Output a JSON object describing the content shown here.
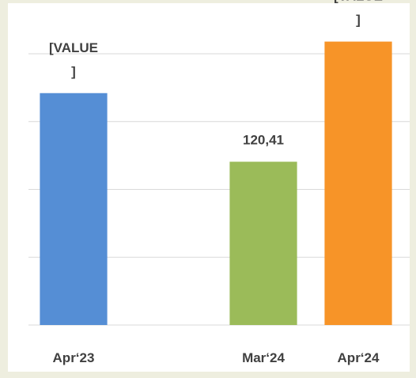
{
  "chart_data": {
    "type": "bar",
    "categories": [
      "Apr‘23",
      null,
      "Mar‘24",
      "Apr‘24"
    ],
    "values": [
      171,
      null,
      120.41,
      209
    ],
    "value_labels": [
      "[VALUE ]",
      null,
      "120,41",
      "[VALUE ]"
    ],
    "colors": [
      "#558ed5",
      null,
      "#9bbb59",
      "#f79428"
    ],
    "ylim": [
      0,
      235
    ],
    "yticks": [
      0,
      50,
      100,
      150,
      200
    ],
    "grid": true
  }
}
